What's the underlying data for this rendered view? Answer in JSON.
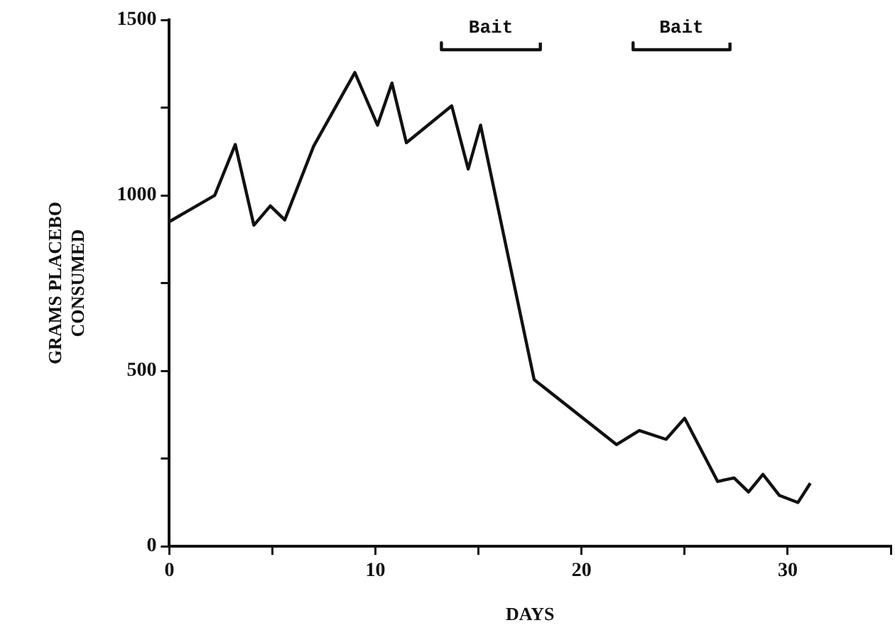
{
  "chart_data": {
    "type": "line",
    "xlabel": "DAYS",
    "ylabel": "GRAMS PLACEBO\nCONSUMED",
    "x": [
      0,
      2.2,
      3.2,
      4.1,
      4.9,
      5.6,
      7,
      9,
      10.1,
      10.8,
      11.5,
      13.7,
      14.5,
      15.1,
      17.7,
      21.7,
      22.8,
      24.1,
      25,
      26.6,
      27.4,
      28.1,
      28.8,
      29.6,
      30.5,
      31.1
    ],
    "series": [
      {
        "color": "#111111",
        "values": [
          925,
          1000,
          1145,
          915,
          970,
          930,
          1140,
          1350,
          1200,
          1320,
          1150,
          1255,
          1075,
          1200,
          475,
          290,
          330,
          305,
          365,
          185,
          195,
          155,
          205,
          145,
          125,
          180
        ]
      },
      {
        "name": "Bait",
        "color": "#111111",
        "x": [
          13.2,
          13.2,
          18,
          18
        ],
        "values": [
          1435,
          1415,
          1415,
          1435
        ]
      },
      {
        "name": "Bait",
        "color": "#111111",
        "x": [
          22.5,
          22.5,
          27.2,
          27.2
        ],
        "values": [
          1435,
          1415,
          1415,
          1435
        ]
      }
    ],
    "xlim": [
      0,
      35
    ],
    "xticks": [
      0,
      {
        "value": 5,
        "label": null
      },
      10,
      {
        "value": 15,
        "label": null
      },
      20,
      {
        "value": 25,
        "label": null
      },
      30,
      {
        "value": 35,
        "label": null
      }
    ],
    "ylim": [
      0,
      1500
    ],
    "yticks": [
      0,
      {
        "value": 250,
        "label": null
      },
      500,
      {
        "value": 750,
        "label": null
      },
      1000,
      {
        "value": 1250,
        "label": null
      },
      1500
    ],
    "grid": false,
    "legend": false,
    "marker": "none",
    "line_style": "solid"
  }
}
